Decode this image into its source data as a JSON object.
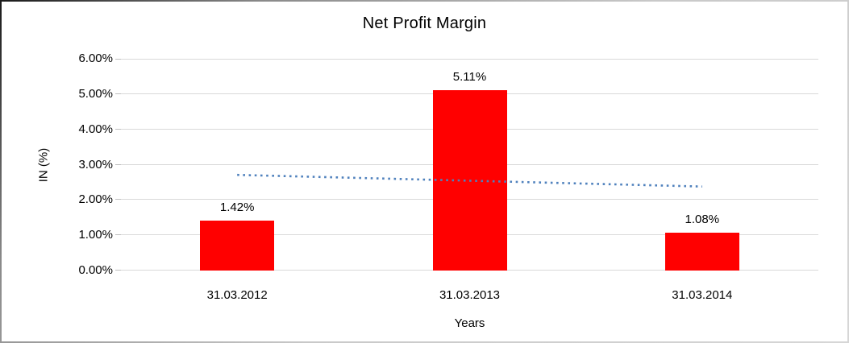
{
  "chart_data": {
    "type": "bar",
    "title": "Net Profit Margin",
    "categories": [
      "31.03.2012",
      "31.03.2013",
      "31.03.2014"
    ],
    "values": [
      1.42,
      5.11,
      1.08
    ],
    "data_labels": [
      "1.42%",
      "5.11%",
      "1.08%"
    ],
    "xlabel": "Years",
    "ylabel": "IN (%)",
    "ylim": [
      0,
      6
    ],
    "ytick_labels": [
      "0.00%",
      "1.00%",
      "2.00%",
      "3.00%",
      "4.00%",
      "5.00%",
      "6.00%"
    ],
    "grid": true,
    "legend": "none",
    "colors": {
      "bar": "#FF0000",
      "gridline": "#D9D9D9",
      "tick": "#BFBFBF",
      "text": "#000000",
      "trendline": "#4F81BD"
    },
    "trendline": {
      "type": "linear",
      "style": "dotted",
      "values_at_ends": [
        2.71,
        2.38
      ]
    }
  }
}
